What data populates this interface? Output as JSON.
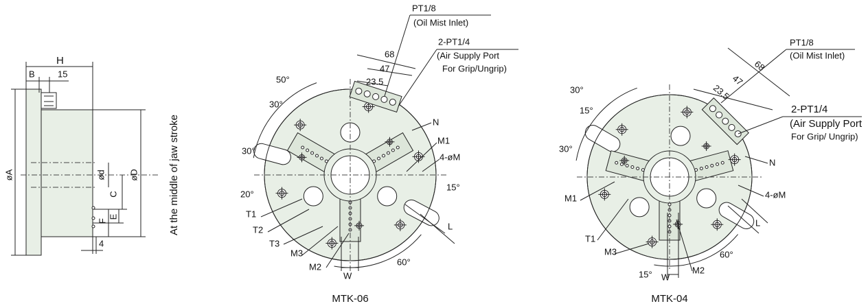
{
  "side_view": {
    "H": "H",
    "B": "B",
    "dim_15": "15",
    "A": "øA",
    "d": "ød",
    "C": "C",
    "E": "E",
    "F": "F",
    "D": "øD",
    "note": "At the middle of jaw stroke",
    "dim_4": "4"
  },
  "mtk06": {
    "title": "MTK-06",
    "pt18": "PT1/8",
    "oil": "(Oil Mist Inlet)",
    "pt14": "2-PT1/4",
    "air1": "(Air Supply Port",
    "air2": "For Grip/Ungrip)",
    "d68": "68",
    "d47": "47",
    "d235": "23.5",
    "a50": "50°",
    "a30a": "30°",
    "a30b": "30°",
    "a20": "20°",
    "a15": "15°",
    "a60": "60°",
    "N": "N",
    "M1": "M1",
    "M": "4-øM",
    "L": "L",
    "T1": "T1",
    "T2": "T2",
    "T3": "T3",
    "M3": "M3",
    "M2": "M2",
    "W": "W"
  },
  "mtk04": {
    "title": "MTK-04",
    "pt18": "PT1/8",
    "oil": "(Oil Mist Inlet)",
    "pt14": "2-PT1/4",
    "air1": "(Air Supply Port",
    "air2": "For Grip/ Ungrip)",
    "d68": "68",
    "d47": "47",
    "d235": "23.5",
    "a30a": "30°",
    "a15a": "15°",
    "a30b": "30°",
    "a15b": "15°",
    "a60": "60°",
    "N": "N",
    "M1": "M1",
    "M": "4-øM",
    "L": "L",
    "T1": "T1",
    "M3": "M3",
    "M2": "M2",
    "W": "W"
  }
}
